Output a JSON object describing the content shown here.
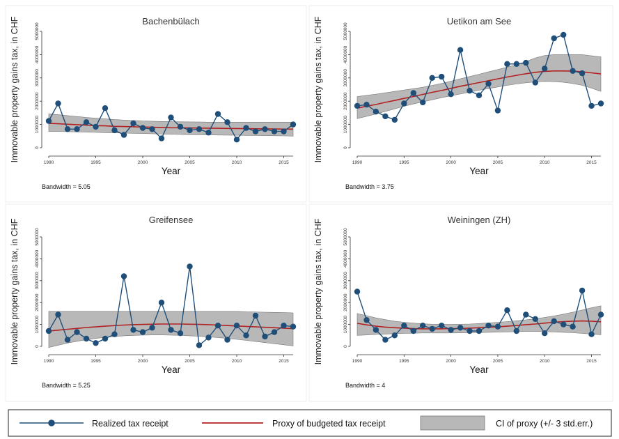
{
  "chart_data": [
    {
      "type": "line",
      "title": "Bachenbülach",
      "xlabel": "Year",
      "ylabel": "Immovable property gains tax, in CHF",
      "note": "Bandwidth = 5.05",
      "xlim": [
        1990,
        2016
      ],
      "ylim": [
        0,
        5000000
      ],
      "xticks": [
        1990,
        1995,
        2000,
        2005,
        2010,
        2015
      ],
      "yticks": [
        0,
        1000000,
        2000000,
        3000000,
        4000000,
        5000000
      ],
      "x": [
        1990,
        1991,
        1992,
        1993,
        1994,
        1995,
        1996,
        1997,
        1998,
        1999,
        2000,
        2001,
        2002,
        2003,
        2004,
        2005,
        2006,
        2007,
        2008,
        2009,
        2010,
        2011,
        2012,
        2013,
        2014,
        2015,
        2016
      ],
      "series": [
        {
          "name": "Realized tax receipt",
          "values": [
            1150000,
            1900000,
            800000,
            800000,
            1100000,
            900000,
            1700000,
            750000,
            550000,
            1050000,
            850000,
            800000,
            400000,
            1300000,
            900000,
            750000,
            800000,
            650000,
            1450000,
            1100000,
            350000,
            850000,
            700000,
            800000,
            700000,
            700000,
            1000000
          ]
        },
        {
          "name": "Proxy of budgeted tax receipt",
          "values": [
            1050000,
            1030000,
            1010000,
            990000,
            970000,
            950000,
            940000,
            920000,
            910000,
            900000,
            890000,
            880000,
            870000,
            860000,
            855000,
            850000,
            845000,
            840000,
            835000,
            830000,
            825000,
            820000,
            815000,
            810000,
            805000,
            800000,
            800000
          ]
        },
        {
          "name": "CI of proxy (+/- 3 std.err.)",
          "lower": [
            700000,
            700000,
            690000,
            680000,
            670000,
            660000,
            650000,
            640000,
            630000,
            620000,
            610000,
            600000,
            590000,
            580000,
            570000,
            560000,
            555000,
            550000,
            545000,
            540000,
            535000,
            530000,
            525000,
            520000,
            515000,
            510000,
            500000
          ],
          "upper": [
            1450000,
            1420000,
            1380000,
            1340000,
            1300000,
            1270000,
            1240000,
            1210000,
            1190000,
            1170000,
            1150000,
            1140000,
            1130000,
            1120000,
            1115000,
            1110000,
            1105000,
            1100000,
            1100000,
            1100000,
            1100000,
            1100000,
            1100000,
            1100000,
            1100000,
            1100000,
            1100000
          ]
        }
      ]
    },
    {
      "type": "line",
      "title": "Uetikon am See",
      "xlabel": "Year",
      "ylabel": "Immovable property gains tax, in CHF",
      "note": "Bandwidth = 3.75",
      "xlim": [
        1990,
        2016
      ],
      "ylim": [
        0,
        5000000
      ],
      "xticks": [
        1990,
        1995,
        2000,
        2005,
        2010,
        2015
      ],
      "yticks": [
        0,
        1000000,
        2000000,
        3000000,
        4000000,
        5000000
      ],
      "x": [
        1990,
        1991,
        1992,
        1993,
        1994,
        1995,
        1996,
        1997,
        1998,
        1999,
        2000,
        2001,
        2002,
        2003,
        2004,
        2005,
        2006,
        2007,
        2008,
        2009,
        2010,
        2011,
        2012,
        2013,
        2014,
        2015,
        2016
      ],
      "series": [
        {
          "name": "Realized tax receipt",
          "values": [
            1800000,
            1850000,
            1550000,
            1350000,
            1200000,
            1900000,
            2350000,
            1950000,
            3000000,
            3050000,
            2300000,
            4200000,
            2450000,
            2250000,
            2750000,
            1600000,
            3600000,
            3600000,
            3650000,
            2800000,
            3400000,
            4700000,
            4850000,
            3300000,
            3200000,
            1800000,
            1900000
          ]
        },
        {
          "name": "Proxy of budgeted tax receipt",
          "values": [
            1700000,
            1780000,
            1860000,
            1950000,
            2030000,
            2120000,
            2200000,
            2290000,
            2380000,
            2460000,
            2550000,
            2640000,
            2720000,
            2800000,
            2880000,
            2960000,
            3040000,
            3110000,
            3180000,
            3240000,
            3280000,
            3300000,
            3300000,
            3290000,
            3260000,
            3220000,
            3170000
          ]
        },
        {
          "name": "CI of proxy (+/- 3 std.err.)",
          "lower": [
            1250000,
            1350000,
            1450000,
            1560000,
            1670000,
            1780000,
            1880000,
            1970000,
            2060000,
            2150000,
            2230000,
            2310000,
            2390000,
            2470000,
            2540000,
            2610000,
            2680000,
            2740000,
            2790000,
            2830000,
            2850000,
            2840000,
            2810000,
            2760000,
            2680000,
            2560000,
            2420000
          ],
          "upper": [
            2200000,
            2250000,
            2300000,
            2360000,
            2420000,
            2480000,
            2540000,
            2600000,
            2680000,
            2760000,
            2860000,
            2960000,
            3060000,
            3160000,
            3260000,
            3360000,
            3460000,
            3570000,
            3700000,
            3860000,
            3960000,
            4000000,
            4000000,
            4000000,
            4000000,
            3950000,
            3900000
          ]
        }
      ]
    },
    {
      "type": "line",
      "title": "Greifensee",
      "xlabel": "Year",
      "ylabel": "Immovable property gains tax, in CHF",
      "note": "Bandwidth = 5.25",
      "xlim": [
        1990,
        2016
      ],
      "ylim": [
        0,
        5000000
      ],
      "xticks": [
        1990,
        1995,
        2000,
        2005,
        2010,
        2015
      ],
      "yticks": [
        0,
        1000000,
        2000000,
        3000000,
        4000000,
        5000000
      ],
      "x": [
        1990,
        1991,
        1992,
        1993,
        1994,
        1995,
        1996,
        1997,
        1998,
        1999,
        2000,
        2001,
        2002,
        2003,
        2004,
        2005,
        2006,
        2007,
        2008,
        2009,
        2010,
        2011,
        2012,
        2013,
        2014,
        2015,
        2016
      ],
      "series": [
        {
          "name": "Realized tax receipt",
          "values": [
            700000,
            1450000,
            300000,
            650000,
            350000,
            150000,
            350000,
            550000,
            3200000,
            750000,
            650000,
            850000,
            2000000,
            750000,
            600000,
            3650000,
            50000,
            400000,
            950000,
            300000,
            950000,
            500000,
            1400000,
            450000,
            650000,
            950000,
            900000
          ]
        },
        {
          "name": "Proxy of budgeted tax receipt",
          "values": [
            700000,
            740000,
            780000,
            820000,
            860000,
            890000,
            920000,
            950000,
            970000,
            990000,
            1000000,
            1010000,
            1020000,
            1020000,
            1020000,
            1010000,
            1000000,
            990000,
            970000,
            950000,
            930000,
            910000,
            890000,
            870000,
            850000,
            830000,
            810000
          ]
        },
        {
          "name": "CI of proxy (+/- 3 std.err.)",
          "lower": [
            -50000,
            50000,
            150000,
            230000,
            300000,
            360000,
            410000,
            450000,
            480000,
            500000,
            510000,
            520000,
            520000,
            510000,
            500000,
            480000,
            460000,
            430000,
            400000,
            360000,
            320000,
            270000,
            220000,
            170000,
            120000,
            70000,
            20000
          ],
          "upper": [
            1600000,
            1600000,
            1600000,
            1600000,
            1600000,
            1600000,
            1600000,
            1600000,
            1600000,
            1600000,
            1600000,
            1600000,
            1600000,
            1600000,
            1600000,
            1600000,
            1600000,
            1600000,
            1600000,
            1600000,
            1600000,
            1580000,
            1570000,
            1560000,
            1550000,
            1540000,
            1530000
          ]
        }
      ]
    },
    {
      "type": "line",
      "title": "Weiningen (ZH)",
      "xlabel": "Year",
      "ylabel": "Immovable property gains tax, in CHF",
      "note": "Bandwidth = 4",
      "xlim": [
        1990,
        2016
      ],
      "ylim": [
        0,
        5000000
      ],
      "xticks": [
        1990,
        1995,
        2000,
        2005,
        2010,
        2015
      ],
      "yticks": [
        0,
        1000000,
        2000000,
        3000000,
        4000000,
        5000000
      ],
      "x": [
        1990,
        1991,
        1992,
        1993,
        1994,
        1995,
        1996,
        1997,
        1998,
        1999,
        2000,
        2001,
        2002,
        2003,
        2004,
        2005,
        2006,
        2007,
        2008,
        2009,
        2010,
        2011,
        2012,
        2013,
        2014,
        2015,
        2016
      ],
      "series": [
        {
          "name": "Realized tax receipt",
          "values": [
            2500000,
            1200000,
            750000,
            300000,
            500000,
            950000,
            700000,
            950000,
            800000,
            950000,
            750000,
            850000,
            700000,
            700000,
            950000,
            900000,
            1650000,
            700000,
            1450000,
            1250000,
            600000,
            1150000,
            1000000,
            900000,
            2550000,
            550000,
            1450000
          ]
        },
        {
          "name": "Proxy of budgeted tax receipt",
          "values": [
            1050000,
            980000,
            920000,
            880000,
            850000,
            830000,
            810000,
            800000,
            800000,
            800000,
            810000,
            820000,
            830000,
            850000,
            870000,
            890000,
            920000,
            950000,
            990000,
            1020000,
            1060000,
            1100000,
            1130000,
            1150000,
            1160000,
            1150000,
            1120000
          ]
        },
        {
          "name": "CI of proxy (+/- 3 std.err.)",
          "lower": [
            500000,
            520000,
            540000,
            560000,
            580000,
            590000,
            600000,
            610000,
            610000,
            610000,
            610000,
            615000,
            620000,
            630000,
            640000,
            650000,
            660000,
            670000,
            680000,
            680000,
            670000,
            660000,
            640000,
            620000,
            590000,
            560000,
            530000
          ],
          "upper": [
            1500000,
            1400000,
            1300000,
            1220000,
            1150000,
            1100000,
            1060000,
            1030000,
            1010000,
            1000000,
            1000000,
            1010000,
            1020000,
            1040000,
            1070000,
            1100000,
            1130000,
            1170000,
            1210000,
            1260000,
            1320000,
            1390000,
            1470000,
            1560000,
            1660000,
            1760000,
            1850000
          ]
        }
      ]
    }
  ],
  "legend": {
    "items": [
      {
        "label": "Realized tax receipt"
      },
      {
        "label": "Proxy of budgeted tax receipt"
      },
      {
        "label": "CI of proxy (+/- 3 std.err.)"
      }
    ]
  },
  "colors": {
    "realized": "#1f4e79",
    "proxy": "#b22222",
    "band": "#b8b8b8",
    "band_stroke": "#777777"
  }
}
